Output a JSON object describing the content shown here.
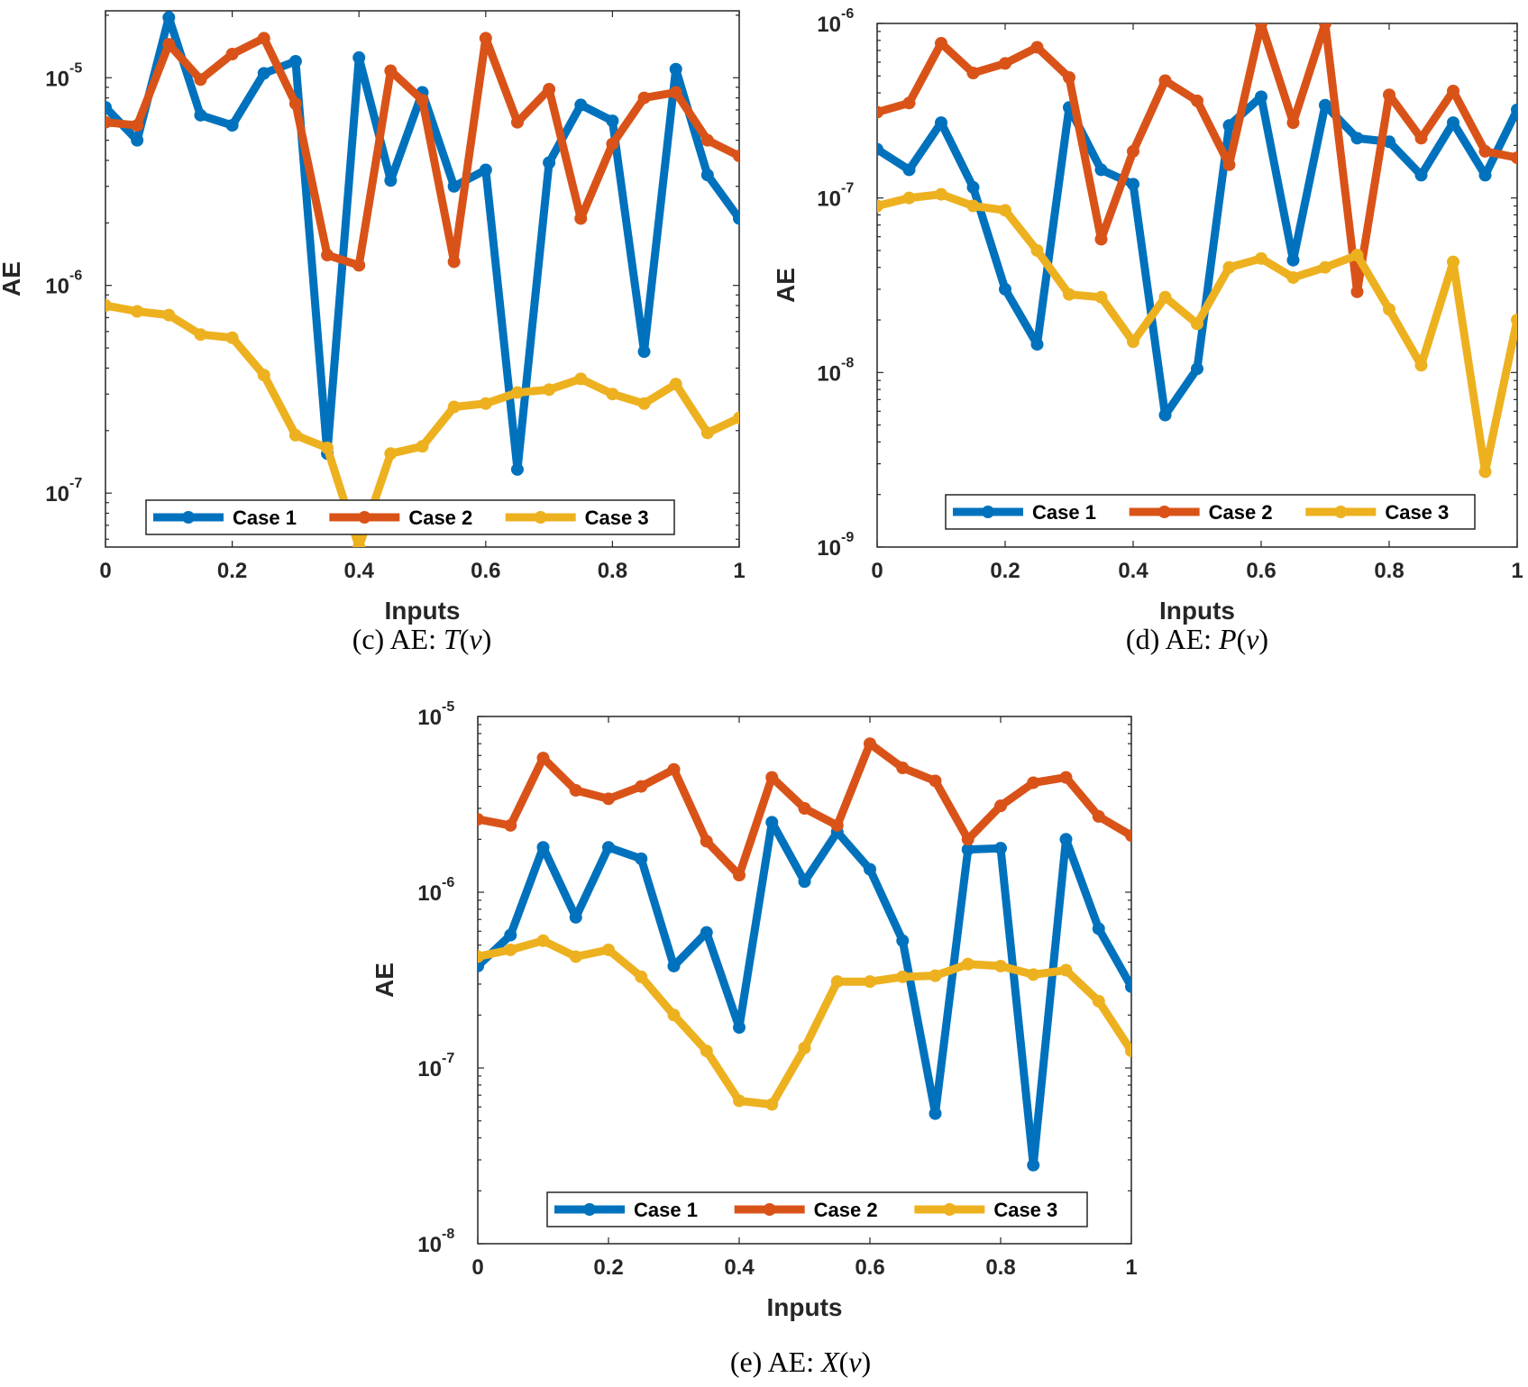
{
  "figure": {
    "colors": {
      "Case 1": "#0072BD",
      "Case 2": "#D95319",
      "Case 3": "#EDB120",
      "axes": "#262626"
    }
  },
  "chart_data": [
    {
      "id": "c",
      "type": "line",
      "yscale": "log",
      "caption": {
        "prefix": "(c) AE: ",
        "func": "T",
        "open": "(",
        "var": "v",
        "close": ")"
      },
      "xlabel": "Inputs",
      "ylabel": "AE",
      "xlim": [
        0,
        1
      ],
      "ylim": [
        5.5e-08,
        2.1e-05
      ],
      "xticks": [
        "0",
        "0.2",
        "0.4",
        "0.6",
        "0.8",
        "1"
      ],
      "yticks": [
        {
          "base": "10",
          "exp": "-7"
        },
        {
          "base": "10",
          "exp": "-6"
        },
        {
          "base": "10",
          "exp": "-5"
        }
      ],
      "x": [
        0,
        0.05,
        0.1,
        0.15,
        0.2,
        0.25,
        0.3,
        0.35,
        0.4,
        0.45,
        0.5,
        0.55,
        0.6,
        0.65,
        0.7,
        0.75,
        0.8,
        0.85,
        0.9,
        0.95,
        1
      ],
      "series": [
        {
          "name": "Case 1",
          "values": [
            7.2e-06,
            5e-06,
            1.95e-05,
            6.6e-06,
            5.9e-06,
            1.05e-05,
            1.2e-05,
            1.55e-07,
            1.25e-05,
            3.2e-06,
            8.5e-06,
            3e-06,
            3.6e-06,
            1.3e-07,
            3.9e-06,
            7.4e-06,
            6.2e-06,
            4.8e-07,
            1.1e-05,
            3.4e-06,
            2.1e-06
          ]
        },
        {
          "name": "Case 2",
          "values": [
            6.1e-06,
            5.9e-06,
            1.45e-05,
            9.8e-06,
            1.3e-05,
            1.55e-05,
            7.5e-06,
            1.4e-06,
            1.25e-06,
            1.08e-05,
            7.8e-06,
            1.3e-06,
            1.55e-05,
            6.1e-06,
            8.8e-06,
            2.1e-06,
            4.8e-06,
            8e-06,
            8.5e-06,
            5e-06,
            4.2e-06
          ]
        },
        {
          "name": "Case 3",
          "values": [
            8e-07,
            7.5e-07,
            7.2e-07,
            5.8e-07,
            5.6e-07,
            3.7e-07,
            1.9e-07,
            1.65e-07,
            5.5e-08,
            1.55e-07,
            1.68e-07,
            2.6e-07,
            2.7e-07,
            3.05e-07,
            3.15e-07,
            3.55e-07,
            3e-07,
            2.7e-07,
            3.35e-07,
            1.95e-07,
            2.3e-07
          ]
        }
      ],
      "legend": [
        "Case 1",
        "Case 2",
        "Case 3"
      ]
    },
    {
      "id": "d",
      "type": "line",
      "yscale": "log",
      "caption": {
        "prefix": "(d) AE: ",
        "func": "P",
        "open": "(",
        "var": "v",
        "close": ")"
      },
      "xlabel": "Inputs",
      "ylabel": "AE",
      "xlim": [
        0,
        1
      ],
      "ylim": [
        1e-09,
        1e-06
      ],
      "xticks": [
        "0",
        "0.2",
        "0.4",
        "0.6",
        "0.8",
        "1"
      ],
      "yticks": [
        {
          "base": "10",
          "exp": "-9"
        },
        {
          "base": "10",
          "exp": "-8"
        },
        {
          "base": "10",
          "exp": "-7"
        },
        {
          "base": "10",
          "exp": "-6"
        }
      ],
      "x": [
        0,
        0.05,
        0.1,
        0.15,
        0.2,
        0.25,
        0.3,
        0.35,
        0.4,
        0.45,
        0.5,
        0.55,
        0.6,
        0.65,
        0.7,
        0.75,
        0.8,
        0.85,
        0.9,
        0.95,
        1
      ],
      "series": [
        {
          "name": "Case 1",
          "values": [
            1.9e-07,
            1.45e-07,
            2.7e-07,
            1.15e-07,
            3e-08,
            1.45e-08,
            3.3e-07,
            1.45e-07,
            1.2e-07,
            5.7e-09,
            1.05e-08,
            2.6e-07,
            3.8e-07,
            4.4e-08,
            3.4e-07,
            2.2e-07,
            2.1e-07,
            1.35e-07,
            2.7e-07,
            1.35e-07,
            3.2e-07
          ]
        },
        {
          "name": "Case 2",
          "values": [
            3.1e-07,
            3.5e-07,
            7.7e-07,
            5.2e-07,
            5.9e-07,
            7.3e-07,
            4.9e-07,
            5.8e-08,
            1.85e-07,
            4.7e-07,
            3.6e-07,
            1.55e-07,
            1e-06,
            2.7e-07,
            1e-06,
            2.9e-08,
            3.9e-07,
            2.2e-07,
            4.1e-07,
            1.85e-07,
            1.7e-07
          ]
        },
        {
          "name": "Case 3",
          "values": [
            9e-08,
            1e-07,
            1.05e-07,
            9e-08,
            8.5e-08,
            5e-08,
            2.8e-08,
            2.7e-08,
            1.5e-08,
            2.7e-08,
            1.9e-08,
            4e-08,
            4.5e-08,
            3.5e-08,
            4e-08,
            4.7e-08,
            2.3e-08,
            1.1e-08,
            4.3e-08,
            2.7e-09,
            2e-08
          ]
        }
      ],
      "legend": [
        "Case 1",
        "Case 2",
        "Case 3"
      ]
    },
    {
      "id": "e",
      "type": "line",
      "yscale": "log",
      "caption": {
        "prefix": "(e) AE: ",
        "func": "X",
        "open": "(",
        "var": "v",
        "close": ")"
      },
      "xlabel": "Inputs",
      "ylabel": "AE",
      "xlim": [
        0,
        1
      ],
      "ylim": [
        1e-08,
        1e-05
      ],
      "xticks": [
        "0",
        "0.2",
        "0.4",
        "0.6",
        "0.8",
        "1"
      ],
      "yticks": [
        {
          "base": "10",
          "exp": "-8"
        },
        {
          "base": "10",
          "exp": "-7"
        },
        {
          "base": "10",
          "exp": "-6"
        },
        {
          "base": "10",
          "exp": "-5"
        }
      ],
      "x": [
        0,
        0.05,
        0.1,
        0.15,
        0.2,
        0.25,
        0.3,
        0.35,
        0.4,
        0.45,
        0.5,
        0.55,
        0.6,
        0.65,
        0.7,
        0.75,
        0.8,
        0.85,
        0.9,
        0.95,
        1
      ],
      "series": [
        {
          "name": "Case 1",
          "values": [
            3.8e-07,
            5.7e-07,
            1.8e-06,
            7.2e-07,
            1.8e-06,
            1.55e-06,
            3.8e-07,
            5.9e-07,
            1.7e-07,
            2.5e-06,
            1.15e-06,
            2.2e-06,
            1.35e-06,
            5.3e-07,
            5.5e-08,
            1.75e-06,
            1.78e-06,
            2.8e-08,
            2e-06,
            6.2e-07,
            2.9e-07
          ]
        },
        {
          "name": "Case 2",
          "values": [
            2.6e-06,
            2.4e-06,
            5.8e-06,
            3.8e-06,
            3.4e-06,
            4e-06,
            5e-06,
            1.95e-06,
            1.25e-06,
            4.5e-06,
            3e-06,
            2.4e-06,
            7e-06,
            5.1e-06,
            4.3e-06,
            2e-06,
            3.1e-06,
            4.2e-06,
            4.5e-06,
            2.7e-06,
            2.1e-06
          ]
        },
        {
          "name": "Case 3",
          "values": [
            4.3e-07,
            4.7e-07,
            5.3e-07,
            4.3e-07,
            4.7e-07,
            3.3e-07,
            2e-07,
            1.25e-07,
            6.5e-08,
            6.2e-08,
            1.3e-07,
            3.1e-07,
            3.1e-07,
            3.3e-07,
            3.35e-07,
            3.9e-07,
            3.8e-07,
            3.4e-07,
            3.6e-07,
            2.4e-07,
            1.25e-07
          ]
        }
      ],
      "legend": [
        "Case 1",
        "Case 2",
        "Case 3"
      ]
    }
  ]
}
